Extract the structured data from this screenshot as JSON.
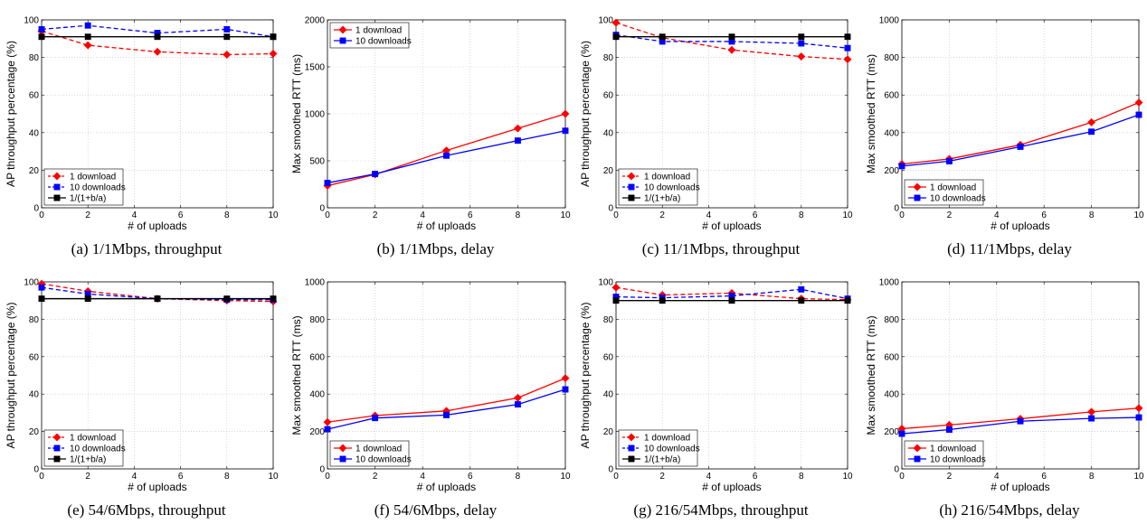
{
  "figure": {
    "charts": [
      {
        "caption": "(a) 1/1Mbps, throughput",
        "kind": "throughput",
        "xlabel": "# of uploads",
        "ylabel": "AP throughput percentage (%)",
        "ylim": [
          0,
          100
        ],
        "yticks": [
          0,
          20,
          40,
          60,
          80,
          100
        ],
        "legend_position": "bottom-left"
      },
      {
        "caption": "(b) 1/1Mbps, delay",
        "kind": "delay",
        "xlabel": "# of uploads",
        "ylabel": "Max smoothed RTT (ms)",
        "ylim": [
          0,
          2000
        ],
        "yticks": [
          0,
          500,
          1000,
          1500,
          2000
        ],
        "legend_position": "top-left"
      },
      {
        "caption": "(c) 11/1Mbps, throughput",
        "kind": "throughput",
        "xlabel": "# of uploads",
        "ylabel": "AP throughput percentage (%)",
        "ylim": [
          0,
          100
        ],
        "yticks": [
          0,
          20,
          40,
          60,
          80,
          100
        ],
        "legend_position": "bottom-left"
      },
      {
        "caption": "(d) 11/1Mbps, delay",
        "kind": "delay",
        "xlabel": "# of uploads",
        "ylabel": "Max smoothed RTT (ms)",
        "ylim": [
          0,
          1000
        ],
        "yticks": [
          0,
          200,
          400,
          600,
          800,
          1000
        ],
        "legend_position": "bottom-left"
      },
      {
        "caption": "(e) 54/6Mbps, throughput",
        "kind": "throughput",
        "xlabel": "# of uploads",
        "ylabel": "AP throughput percentage (%)",
        "ylim": [
          0,
          100
        ],
        "yticks": [
          0,
          20,
          40,
          60,
          80,
          100
        ],
        "legend_position": "bottom-left"
      },
      {
        "caption": "(f) 54/6Mbps, delay",
        "kind": "delay",
        "xlabel": "# of uploads",
        "ylabel": "Max smoothed RTT (ms)",
        "ylim": [
          0,
          1000
        ],
        "yticks": [
          0,
          200,
          400,
          600,
          800,
          1000
        ],
        "legend_position": "bottom-left"
      },
      {
        "caption": "(g) 216/54Mbps, throughput",
        "kind": "throughput",
        "xlabel": "# of uploads",
        "ylabel": "AP throughput percentage (%)",
        "ylim": [
          0,
          100
        ],
        "yticks": [
          0,
          20,
          40,
          60,
          80,
          100
        ],
        "legend_position": "bottom-left"
      },
      {
        "caption": "(h) 216/54Mbps, delay",
        "kind": "delay",
        "xlabel": "# of uploads",
        "ylabel": "Max smoothed RTT (ms)",
        "ylim": [
          0,
          1000
        ],
        "yticks": [
          0,
          200,
          400,
          600,
          800,
          1000
        ],
        "legend_position": "bottom-left"
      }
    ]
  },
  "chart_data": [
    {
      "type": "line",
      "x": [
        0,
        2,
        5,
        8,
        10
      ],
      "xlim": [
        0,
        10
      ],
      "xticks": [
        0,
        2,
        4,
        6,
        8,
        10
      ],
      "grid": true,
      "series": [
        {
          "name": "1 download",
          "values": [
            94,
            86.5,
            83,
            81.5,
            82
          ],
          "color": "#ff0000",
          "marker": "diamond",
          "dash": "dashed"
        },
        {
          "name": "10 downloads",
          "values": [
            95,
            97,
            93,
            95,
            91
          ],
          "color": "#0000ff",
          "marker": "square",
          "dash": "dashed"
        },
        {
          "name": "1/(1+b/a)",
          "values": [
            91,
            91,
            91,
            91,
            91
          ],
          "color": "#000000",
          "marker": "square",
          "dash": "solid"
        }
      ]
    },
    {
      "type": "line",
      "x": [
        0,
        2,
        5,
        8,
        10
      ],
      "xlim": [
        0,
        10
      ],
      "xticks": [
        0,
        2,
        4,
        6,
        8,
        10
      ],
      "grid": true,
      "series": [
        {
          "name": "1 download",
          "values": [
            235,
            355,
            610,
            845,
            1000
          ],
          "color": "#ff0000",
          "marker": "diamond",
          "dash": "solid"
        },
        {
          "name": "10 downloads",
          "values": [
            265,
            360,
            555,
            715,
            820
          ],
          "color": "#0000ff",
          "marker": "square",
          "dash": "solid"
        }
      ]
    },
    {
      "type": "line",
      "x": [
        0,
        2,
        5,
        8,
        10
      ],
      "xlim": [
        0,
        10
      ],
      "xticks": [
        0,
        2,
        4,
        6,
        8,
        10
      ],
      "grid": true,
      "series": [
        {
          "name": "1 download",
          "values": [
            98.5,
            90.5,
            84,
            80.5,
            79
          ],
          "color": "#ff0000",
          "marker": "diamond",
          "dash": "dashed"
        },
        {
          "name": "10 downloads",
          "values": [
            92,
            88.5,
            88.5,
            87.5,
            85
          ],
          "color": "#0000ff",
          "marker": "square",
          "dash": "dashed"
        },
        {
          "name": "1/(1+b/a)",
          "values": [
            91,
            91,
            91,
            91,
            91
          ],
          "color": "#000000",
          "marker": "square",
          "dash": "solid"
        }
      ]
    },
    {
      "type": "line",
      "x": [
        0,
        2,
        5,
        8,
        10
      ],
      "xlim": [
        0,
        10
      ],
      "xticks": [
        0,
        2,
        4,
        6,
        8,
        10
      ],
      "grid": true,
      "series": [
        {
          "name": "1 download",
          "values": [
            233,
            260,
            335,
            455,
            560
          ],
          "color": "#ff0000",
          "marker": "diamond",
          "dash": "solid"
        },
        {
          "name": "10 downloads",
          "values": [
            222,
            248,
            325,
            405,
            495
          ],
          "color": "#0000ff",
          "marker": "square",
          "dash": "solid"
        }
      ]
    },
    {
      "type": "line",
      "x": [
        0,
        2,
        5,
        8,
        10
      ],
      "xlim": [
        0,
        10
      ],
      "xticks": [
        0,
        2,
        4,
        6,
        8,
        10
      ],
      "grid": true,
      "series": [
        {
          "name": "1 download",
          "values": [
            99,
            95,
            91,
            90,
            89.5
          ],
          "color": "#ff0000",
          "marker": "diamond",
          "dash": "dashed"
        },
        {
          "name": "10 downloads",
          "values": [
            97,
            93.5,
            91,
            90.5,
            90.5
          ],
          "color": "#0000ff",
          "marker": "square",
          "dash": "dashed"
        },
        {
          "name": "1/(1+b/a)",
          "values": [
            91,
            91,
            91,
            91,
            91
          ],
          "color": "#000000",
          "marker": "square",
          "dash": "solid"
        }
      ]
    },
    {
      "type": "line",
      "x": [
        0,
        2,
        5,
        8,
        10
      ],
      "xlim": [
        0,
        10
      ],
      "xticks": [
        0,
        2,
        4,
        6,
        8,
        10
      ],
      "grid": true,
      "series": [
        {
          "name": "1 download",
          "values": [
            250,
            285,
            310,
            380,
            485
          ],
          "color": "#ff0000",
          "marker": "diamond",
          "dash": "solid"
        },
        {
          "name": "10 downloads",
          "values": [
            212,
            272,
            288,
            345,
            425
          ],
          "color": "#0000ff",
          "marker": "square",
          "dash": "solid"
        }
      ]
    },
    {
      "type": "line",
      "x": [
        0,
        2,
        5,
        8,
        10
      ],
      "xlim": [
        0,
        10
      ],
      "xticks": [
        0,
        2,
        4,
        6,
        8,
        10
      ],
      "grid": true,
      "series": [
        {
          "name": "1 download",
          "values": [
            97,
            93,
            94,
            91,
            90.5
          ],
          "color": "#ff0000",
          "marker": "diamond",
          "dash": "dashed"
        },
        {
          "name": "10 downloads",
          "values": [
            92,
            91.5,
            92.5,
            96,
            91
          ],
          "color": "#0000ff",
          "marker": "square",
          "dash": "dashed"
        },
        {
          "name": "1/(1+b/a)",
          "values": [
            90,
            90,
            90,
            90,
            90
          ],
          "color": "#000000",
          "marker": "square",
          "dash": "solid"
        }
      ]
    },
    {
      "type": "line",
      "x": [
        0,
        2,
        5,
        8,
        10
      ],
      "xlim": [
        0,
        10
      ],
      "xticks": [
        0,
        2,
        4,
        6,
        8,
        10
      ],
      "grid": true,
      "series": [
        {
          "name": "1 download",
          "values": [
            215,
            235,
            268,
            305,
            325
          ],
          "color": "#ff0000",
          "marker": "diamond",
          "dash": "solid"
        },
        {
          "name": "10 downloads",
          "values": [
            188,
            210,
            255,
            270,
            275
          ],
          "color": "#0000ff",
          "marker": "square",
          "dash": "solid"
        }
      ]
    }
  ]
}
